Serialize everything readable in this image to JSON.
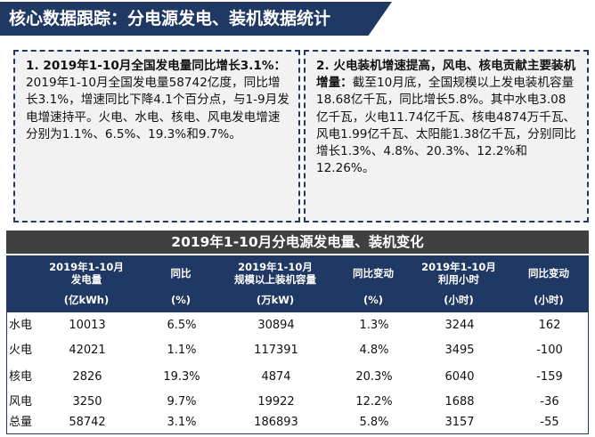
{
  "title": "核心数据跟踪：分电源发电、装机数据统计",
  "card_left": {
    "head": "1. 2019年1-10月全国发电量同比增长3.1%：",
    "body": "2019年1-10月全国发电量58742亿度，同比增长3.1%，增速同比下降4.1个百分点，与1-9月发电增速持平。火电、水电、核电、风电发电增速分别为1.1%、6.5%、19.3%和9.7%。"
  },
  "card_right": {
    "head": "2. 火电装机增速提高，风电、核电贡献主要装机增量：",
    "body": "截至10月底，全国规模以上发电装机容量18.68亿千瓦，同比增长5.8%。其中水电3.08亿千瓦，火电11.74亿千瓦、核电4874万千瓦、风电1.99亿千瓦、太阳能1.38亿千瓦，分别同比增长1.3%、4.8%、20.3%、12.2%和12.26%。"
  },
  "table": {
    "title": "2019年1-10月分电源发电量、装机变化",
    "headers": [
      {
        "l1": "2019年1-10月",
        "l2": "发电量",
        "unit": "(亿kWh)"
      },
      {
        "l1": "同比",
        "l2": "",
        "unit": "(%)"
      },
      {
        "l1": "2019年1-10月",
        "l2": "规模以上装机容量",
        "unit": "(万kW)"
      },
      {
        "l1": "同比变动",
        "l2": "",
        "unit": "(%)"
      },
      {
        "l1": "2019年1-10月",
        "l2": "利用小时",
        "unit": "(小时)"
      },
      {
        "l1": "同比变动",
        "l2": "",
        "unit": "(小时)"
      }
    ],
    "rows": [
      {
        "name": "水电",
        "cells": [
          "10013",
          "6.5%",
          "30894",
          "1.3%",
          "3244",
          "162"
        ]
      },
      {
        "name": "火电",
        "cells": [
          "42021",
          "1.1%",
          "117391",
          "4.8%",
          "3495",
          "-100"
        ]
      },
      {
        "name": "核电",
        "cells": [
          "2826",
          "19.3%",
          "4874",
          "20.3%",
          "6040",
          "-159"
        ]
      },
      {
        "name": "风电",
        "cells": [
          "3250",
          "9.7%",
          "19922",
          "12.2%",
          "1688",
          "-36"
        ]
      },
      {
        "name": "总量",
        "cells": [
          "58742",
          "3.1%",
          "186893",
          "5.8%",
          "3157",
          "-55"
        ]
      }
    ]
  }
}
